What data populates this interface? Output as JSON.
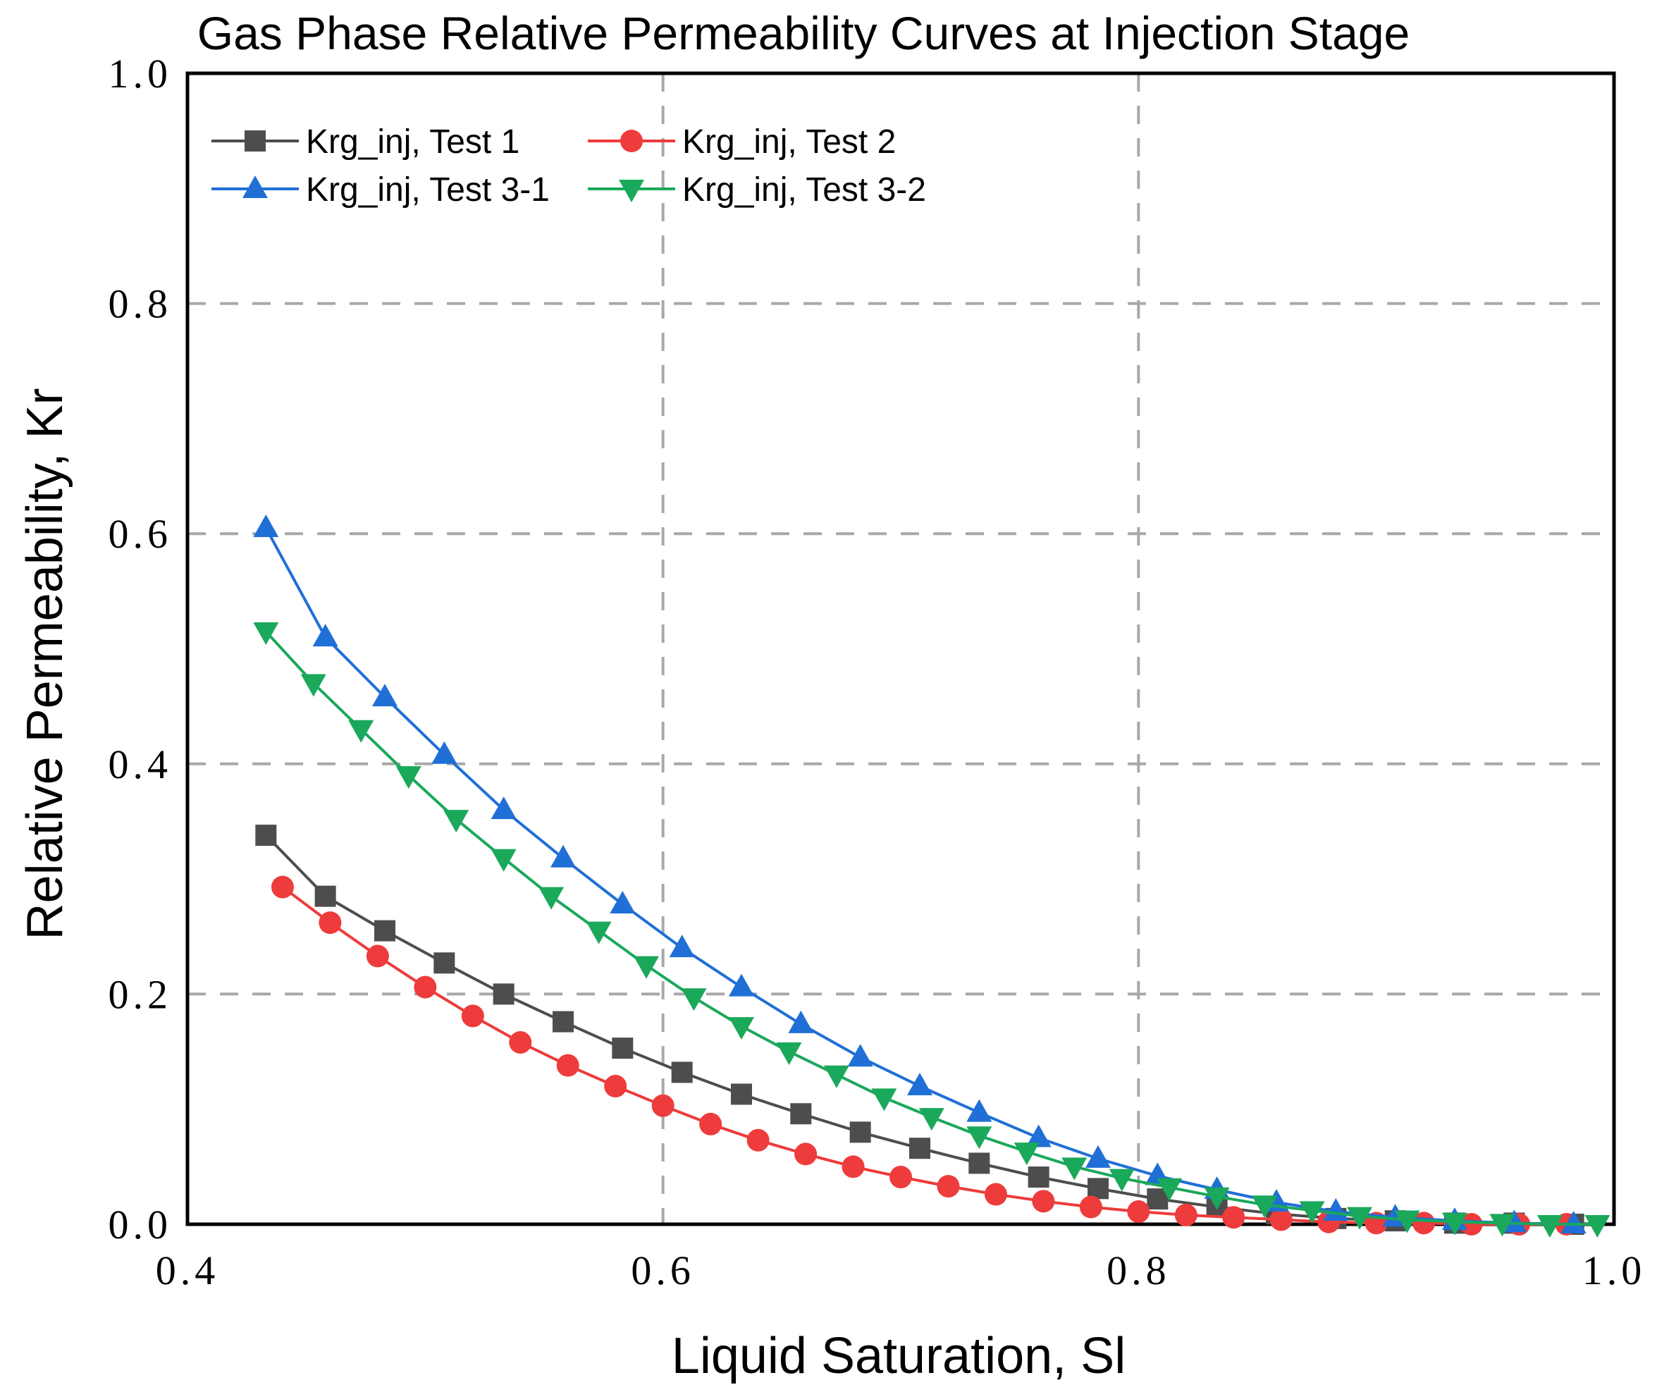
{
  "chart_data": {
    "type": "line",
    "title": "Gas Phase Relative Permeability Curves at Injection Stage",
    "xlabel": "Liquid Saturation, Sl",
    "ylabel": "Relative Permeability, Kr",
    "xlim": [
      0.4,
      1.0
    ],
    "ylim": [
      0.0,
      1.0
    ],
    "x_ticks": [
      0.4,
      0.6,
      0.8,
      1.0
    ],
    "y_ticks": [
      0.0,
      0.2,
      0.4,
      0.6,
      0.8,
      1.0
    ],
    "x_tick_labels": [
      "0.4",
      "0.6",
      "0.8",
      "1.0"
    ],
    "y_tick_labels": [
      "0.0",
      "0.2",
      "0.4",
      "0.6",
      "0.8",
      "1.0"
    ],
    "grid": "dashed",
    "legend_position": "top-left",
    "series": [
      {
        "name": "Krg_inj, Test 1",
        "color": "#4d4d4d",
        "marker": "square",
        "x": [
          0.433,
          0.458,
          0.483,
          0.508,
          0.533,
          0.558,
          0.583,
          0.608,
          0.633,
          0.658,
          0.683,
          0.708,
          0.733,
          0.758,
          0.783,
          0.808,
          0.833,
          0.858,
          0.883,
          0.908,
          0.933,
          0.958,
          0.983
        ],
        "y": [
          0.338,
          0.285,
          0.255,
          0.227,
          0.2,
          0.176,
          0.153,
          0.132,
          0.113,
          0.096,
          0.08,
          0.066,
          0.053,
          0.041,
          0.031,
          0.022,
          0.015,
          0.009,
          0.005,
          0.003,
          0.001,
          0.001,
          0.0
        ]
      },
      {
        "name": "Krg_inj, Test 2",
        "color": "#ee3b3b",
        "marker": "circle",
        "x": [
          0.44,
          0.46,
          0.48,
          0.5,
          0.52,
          0.54,
          0.56,
          0.58,
          0.6,
          0.62,
          0.64,
          0.66,
          0.68,
          0.7,
          0.72,
          0.74,
          0.76,
          0.78,
          0.8,
          0.82,
          0.84,
          0.86,
          0.88,
          0.9,
          0.92,
          0.94,
          0.96,
          0.98
        ],
        "y": [
          0.293,
          0.262,
          0.233,
          0.206,
          0.181,
          0.158,
          0.138,
          0.12,
          0.103,
          0.087,
          0.073,
          0.061,
          0.05,
          0.041,
          0.033,
          0.026,
          0.02,
          0.015,
          0.011,
          0.008,
          0.006,
          0.004,
          0.002,
          0.001,
          0.001,
          0.0,
          0.0,
          0.0
        ]
      },
      {
        "name": "Krg_inj, Test 3-1",
        "color": "#1f6fd6",
        "marker": "triangle-up",
        "x": [
          0.433,
          0.458,
          0.483,
          0.508,
          0.533,
          0.558,
          0.583,
          0.608,
          0.633,
          0.658,
          0.683,
          0.708,
          0.733,
          0.758,
          0.783,
          0.808,
          0.833,
          0.858,
          0.883,
          0.908,
          0.933,
          0.958,
          0.983
        ],
        "y": [
          0.605,
          0.51,
          0.458,
          0.408,
          0.36,
          0.318,
          0.278,
          0.24,
          0.206,
          0.174,
          0.145,
          0.12,
          0.097,
          0.075,
          0.057,
          0.042,
          0.03,
          0.019,
          0.011,
          0.006,
          0.003,
          0.001,
          0.0
        ]
      },
      {
        "name": "Krg_inj, Test 3-2",
        "color": "#1aa85a",
        "marker": "triangle-down",
        "x": [
          0.433,
          0.453,
          0.473,
          0.493,
          0.513,
          0.533,
          0.553,
          0.573,
          0.593,
          0.613,
          0.633,
          0.653,
          0.673,
          0.693,
          0.713,
          0.733,
          0.753,
          0.773,
          0.793,
          0.813,
          0.833,
          0.853,
          0.873,
          0.893,
          0.913,
          0.933,
          0.953,
          0.973,
          0.993
        ],
        "y": [
          0.515,
          0.47,
          0.43,
          0.39,
          0.352,
          0.318,
          0.285,
          0.255,
          0.225,
          0.197,
          0.172,
          0.15,
          0.13,
          0.11,
          0.093,
          0.077,
          0.063,
          0.05,
          0.04,
          0.032,
          0.024,
          0.017,
          0.012,
          0.007,
          0.004,
          0.002,
          0.001,
          0.0,
          0.0
        ]
      }
    ]
  }
}
